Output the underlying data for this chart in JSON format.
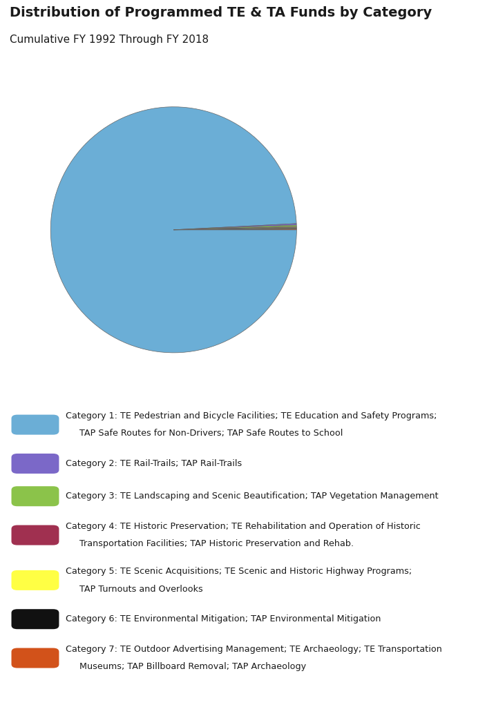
{
  "title": "Distribution of Programmed TE & TA Funds by Category",
  "subtitle": "Cumulative FY 1992 Through FY 2018",
  "title_fontsize": 14,
  "subtitle_fontsize": 11,
  "background_color": "#ffffff",
  "pie_values": [
    99.2,
    0.2,
    0.2,
    0.1,
    0.1,
    0.1,
    0.1
  ],
  "pie_colors": [
    "#6BAED6",
    "#7B68C8",
    "#8BC34A",
    "#A03050",
    "#FFFF44",
    "#111111",
    "#D2521A"
  ],
  "legend_label_lines": [
    [
      "Category 1: TE Pedestrian and Bicycle Facilities; TE Education and Safety Programs;",
      "TAP Safe Routes for Non-Drivers; TAP Safe Routes to School"
    ],
    [
      "Category 2: TE Rail-Trails; TAP Rail-Trails"
    ],
    [
      "Category 3: TE Landscaping and Scenic Beautification; TAP Vegetation Management"
    ],
    [
      "Category 4: TE Historic Preservation; TE Rehabilitation and Operation of Historic",
      "Transportation Facilities; TAP Historic Preservation and Rehab."
    ],
    [
      "Category 5: TE Scenic Acquisitions; TE Scenic and Historic Highway Programs;",
      "TAP Turnouts and Overlooks"
    ],
    [
      "Category 6: TE Environmental Mitigation; TAP Environmental Mitigation"
    ],
    [
      "Category 7: TE Outdoor Advertising Management; TE Archaeology; TE Transportation",
      "Museums; TAP Billboard Removal; TAP Archaeology"
    ]
  ],
  "text_color": "#1a1a1a",
  "legend_fontsize": 9.2,
  "pie_edge_color": "#666666",
  "pie_linewidth": 0.5
}
